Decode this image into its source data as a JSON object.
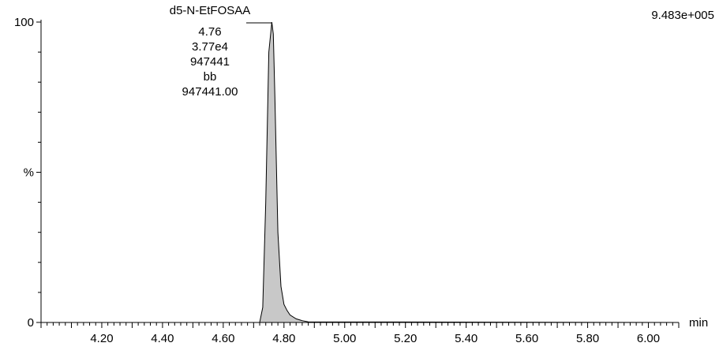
{
  "chart_data": {
    "type": "area",
    "title": "",
    "xlabel": "",
    "ylabel": "%",
    "x_unit": "min",
    "max_intensity": "9.483e+005",
    "xlim": [
      4.0,
      6.1
    ],
    "ylim": [
      0,
      100
    ],
    "x_ticks": [
      "4.20",
      "4.40",
      "4.60",
      "4.80",
      "5.00",
      "5.20",
      "5.40",
      "5.60",
      "5.80",
      "6.00"
    ],
    "x_tick_values": [
      4.2,
      4.4,
      4.6,
      4.8,
      5.0,
      5.2,
      5.4,
      5.6,
      5.8,
      6.0
    ],
    "y_ticks": [
      "0",
      "100"
    ],
    "y_tick_values": [
      0,
      100
    ],
    "y_mid_label": "%",
    "y_mid_value": 50,
    "peak": {
      "compound": "d5-N-EtFOSAA",
      "rt": "4.76",
      "height": "3.77e4",
      "area": "947441",
      "integration": "bb",
      "amount": "947441.00",
      "apex_x": 4.76,
      "apex_y": 100
    },
    "series": [
      {
        "x": [
          4.0,
          4.72,
          4.73,
          4.74,
          4.75,
          4.76,
          4.765,
          4.77,
          4.78,
          4.79,
          4.8,
          4.81,
          4.82,
          4.84,
          4.86,
          4.88,
          6.1
        ],
        "y": [
          0,
          0,
          5,
          40,
          90,
          100,
          96,
          75,
          30,
          12,
          6,
          4,
          2.5,
          1.2,
          0.6,
          0.2,
          0
        ]
      }
    ],
    "fill_color": "#c8c8c8",
    "line_color": "#000000",
    "grid": false,
    "legend": "none"
  }
}
